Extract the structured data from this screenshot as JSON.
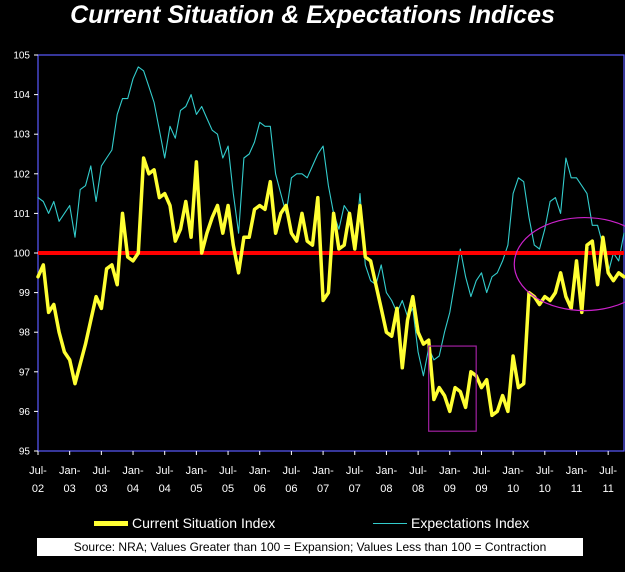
{
  "chart_data": {
    "type": "line",
    "title": "Current Situation & Expectations Indices",
    "ylim": [
      95,
      105
    ],
    "yticks": [
      95,
      96,
      97,
      98,
      99,
      100,
      101,
      102,
      103,
      104,
      105
    ],
    "xlim": [
      "2002-07",
      "2011-10"
    ],
    "x_tick_labels": [
      {
        "at": "2002-07",
        "line1": "Jul-",
        "line2": "02"
      },
      {
        "at": "2003-01",
        "line1": "Jan-",
        "line2": "03"
      },
      {
        "at": "2003-07",
        "line1": "Jul-",
        "line2": "03"
      },
      {
        "at": "2004-01",
        "line1": "Jan-",
        "line2": "04"
      },
      {
        "at": "2004-07",
        "line1": "Jul-",
        "line2": "04"
      },
      {
        "at": "2005-01",
        "line1": "Jan-",
        "line2": "05"
      },
      {
        "at": "2005-07",
        "line1": "Jul-",
        "line2": "05"
      },
      {
        "at": "2006-01",
        "line1": "Jan-",
        "line2": "06"
      },
      {
        "at": "2006-07",
        "line1": "Jul-",
        "line2": "06"
      },
      {
        "at": "2007-01",
        "line1": "Jan-",
        "line2": "07"
      },
      {
        "at": "2007-07",
        "line1": "Jul-",
        "line2": "07"
      },
      {
        "at": "2008-01",
        "line1": "Jan-",
        "line2": "08"
      },
      {
        "at": "2008-07",
        "line1": "Jul-",
        "line2": "08"
      },
      {
        "at": "2009-01",
        "line1": "Jan-",
        "line2": "09"
      },
      {
        "at": "2009-07",
        "line1": "Jul-",
        "line2": "09"
      },
      {
        "at": "2010-01",
        "line1": "Jan-",
        "line2": "10"
      },
      {
        "at": "2010-07",
        "line1": "Jul-",
        "line2": "10"
      },
      {
        "at": "2011-01",
        "line1": "Jan-",
        "line2": "11"
      },
      {
        "at": "2011-07",
        "line1": "Jul-",
        "line2": "11"
      }
    ],
    "reference_line": {
      "y": 100,
      "color": "#ff0000"
    },
    "series": [
      {
        "name": "Current Situation Index",
        "color": "#ffff33",
        "start": "2002-07",
        "step": "month",
        "values": [
          99.4,
          99.7,
          98.5,
          98.7,
          98.0,
          97.5,
          97.3,
          96.7,
          97.2,
          97.7,
          98.3,
          98.9,
          98.6,
          99.6,
          99.7,
          99.2,
          101.0,
          99.9,
          99.8,
          100.0,
          102.4,
          102.0,
          102.1,
          101.4,
          101.5,
          101.2,
          100.3,
          100.6,
          101.3,
          100.4,
          102.3,
          100.0,
          100.5,
          100.9,
          101.2,
          100.5,
          101.2,
          100.2,
          99.5,
          100.4,
          100.4,
          101.1,
          101.2,
          101.1,
          101.8,
          100.5,
          101.0,
          101.2,
          100.5,
          100.3,
          101.0,
          100.3,
          100.2,
          101.4,
          98.8,
          99.0,
          101.0,
          100.1,
          100.2,
          101.0,
          100.1,
          101.2,
          99.9,
          99.8,
          99.2,
          98.6,
          98.0,
          97.9,
          98.6,
          97.1,
          98.3,
          98.9,
          98.0,
          97.7,
          97.8,
          96.3,
          96.6,
          96.4,
          96.0,
          96.6,
          96.5,
          96.1,
          97.0,
          96.9,
          96.6,
          96.8,
          95.9,
          96.0,
          96.4,
          96.0,
          97.4,
          96.6,
          96.7,
          99.0,
          98.9,
          98.7,
          98.9,
          98.8,
          99.0,
          99.5,
          98.9,
          98.6,
          99.8,
          98.5,
          100.2,
          100.3,
          99.2,
          100.4,
          99.5,
          99.3,
          99.5,
          99.4
        ]
      },
      {
        "name": "Expectations Index",
        "color": "#33cccc",
        "start": "2002-07",
        "step": "month",
        "values": [
          101.4,
          101.3,
          101.0,
          101.3,
          100.8,
          101.0,
          101.2,
          100.4,
          101.6,
          101.7,
          102.2,
          101.3,
          102.2,
          102.4,
          102.6,
          103.5,
          103.9,
          103.9,
          104.4,
          104.7,
          104.6,
          104.2,
          103.8,
          103.1,
          102.4,
          103.2,
          102.9,
          103.6,
          103.7,
          104.0,
          103.5,
          103.7,
          103.4,
          103.1,
          103.0,
          102.4,
          102.7,
          101.5,
          100.5,
          102.4,
          102.5,
          102.8,
          103.3,
          103.2,
          103.2,
          102.0,
          101.5,
          101.0,
          101.9,
          102.0,
          102.0,
          101.9,
          102.2,
          102.5,
          102.7,
          101.7,
          101.0,
          100.6,
          101.2,
          101.0,
          100.1,
          101.5,
          99.7,
          99.3,
          99.2,
          99.7,
          99.0,
          98.8,
          98.5,
          98.8,
          98.4,
          98.6,
          97.5,
          96.9,
          97.6,
          97.3,
          97.4,
          98.0,
          98.5,
          99.3,
          100.1,
          99.4,
          98.9,
          99.3,
          99.5,
          99.0,
          99.4,
          99.5,
          99.8,
          100.2,
          101.5,
          101.9,
          101.8,
          100.9,
          100.2,
          100.1,
          100.6,
          101.3,
          101.4,
          101.0,
          102.4,
          101.9,
          101.9,
          101.7,
          101.5,
          100.7,
          100.7,
          100.2,
          99.5,
          100.0,
          99.8,
          100.5
        ]
      }
    ],
    "annotations": [
      {
        "shape": "rectangle",
        "from": "2008-09",
        "to": "2009-06",
        "ymin": 95.5,
        "ymax": 97.65,
        "color": "#a020a0"
      },
      {
        "shape": "ellipse",
        "cx": "2011-01",
        "cy": 99.72,
        "span_months": 16,
        "span_y": 2.35,
        "color": "#cc22cc"
      }
    ]
  },
  "legend": {
    "current_label": "Current Situation Index",
    "expectations_label": "Expectations Index"
  },
  "source_note": "Source: NRA; Values Greater than 100 = Expansion; Values Less than 100 = Contraction"
}
